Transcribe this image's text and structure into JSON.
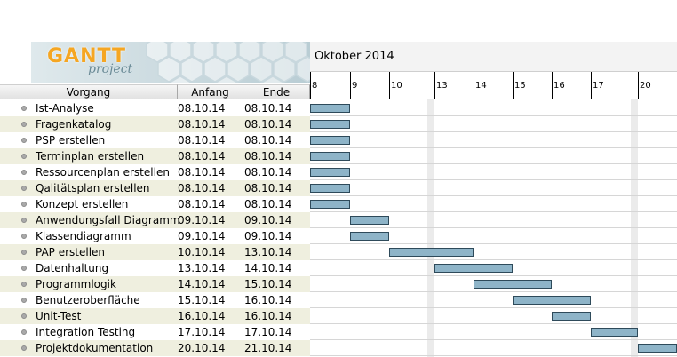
{
  "header": {
    "logo_text": "GANTT",
    "logo_sub": "project",
    "columns": [
      "Vorgang",
      "Anfang",
      "Ende"
    ]
  },
  "timeline": {
    "month_label": "Oktober 2014",
    "day_labels": [
      "8",
      "9",
      "10",
      "13",
      "14",
      "15",
      "16",
      "17",
      "20"
    ]
  },
  "tasks": [
    {
      "name": "Ist-Analyse",
      "start": "08.10.14",
      "end": "08.10.14",
      "bar_from": 0,
      "bar_to": 1
    },
    {
      "name": "Fragenkatalog",
      "start": "08.10.14",
      "end": "08.10.14",
      "bar_from": 0,
      "bar_to": 1
    },
    {
      "name": "PSP erstellen",
      "start": "08.10.14",
      "end": "08.10.14",
      "bar_from": 0,
      "bar_to": 1
    },
    {
      "name": "Terminplan erstellen",
      "start": "08.10.14",
      "end": "08.10.14",
      "bar_from": 0,
      "bar_to": 1
    },
    {
      "name": "Ressourcenplan erstellen",
      "start": "08.10.14",
      "end": "08.10.14",
      "bar_from": 0,
      "bar_to": 1
    },
    {
      "name": "Qalitätsplan erstellen",
      "start": "08.10.14",
      "end": "08.10.14",
      "bar_from": 0,
      "bar_to": 1
    },
    {
      "name": "Konzept erstellen",
      "start": "08.10.14",
      "end": "08.10.14",
      "bar_from": 0,
      "bar_to": 1
    },
    {
      "name": "Anwendungsfall Diagramm",
      "start": "09.10.14",
      "end": "09.10.14",
      "bar_from": 1,
      "bar_to": 2
    },
    {
      "name": "Klassendiagramm",
      "start": "09.10.14",
      "end": "09.10.14",
      "bar_from": 1,
      "bar_to": 2
    },
    {
      "name": "PAP erstellen",
      "start": "10.10.14",
      "end": "13.10.14",
      "bar_from": 2,
      "bar_to": 4
    },
    {
      "name": "Datenhaltung",
      "start": "13.10.14",
      "end": "14.10.14",
      "bar_from": 3,
      "bar_to": 5
    },
    {
      "name": "Programmlogik",
      "start": "14.10.14",
      "end": "15.10.14",
      "bar_from": 4,
      "bar_to": 6
    },
    {
      "name": "Benutzeroberfläche",
      "start": "15.10.14",
      "end": "16.10.14",
      "bar_from": 5,
      "bar_to": 7
    },
    {
      "name": "Unit-Test",
      "start": "16.10.14",
      "end": "16.10.14",
      "bar_from": 6,
      "bar_to": 7
    },
    {
      "name": "Integration Testing",
      "start": "17.10.14",
      "end": "17.10.14",
      "bar_from": 7,
      "bar_to": 8
    },
    {
      "name": "Projektdokumentation",
      "start": "20.10.14",
      "end": "21.10.14",
      "bar_from": 8,
      "bar_to": 10
    }
  ]
}
